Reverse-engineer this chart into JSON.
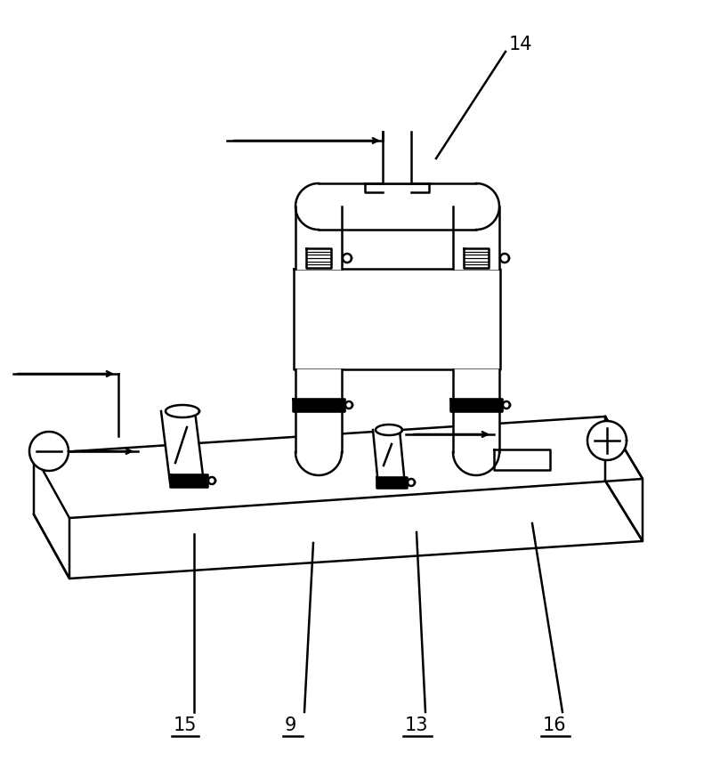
{
  "bg_color": "#ffffff",
  "lc": "#000000",
  "lw": 1.8,
  "label_14": "14",
  "label_15": "15",
  "label_9": "9",
  "label_13": "13",
  "label_16": "16",
  "fig_width": 8.0,
  "fig_height": 8.73
}
